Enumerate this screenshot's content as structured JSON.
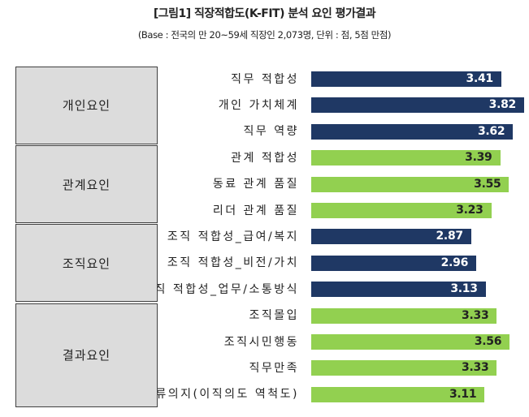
{
  "chart_data": {
    "type": "bar",
    "orientation": "horizontal",
    "title": "[그림1] 직장적합도(K-FIT) 분석 요인 평가결과",
    "subtitle": "(Base : 전국의 만 20~59세 직장인 2,073명, 단위 :  점, 5점 만점)",
    "xlim": [
      0,
      5
    ],
    "grid": false,
    "colors": {
      "dark": "#1f3864",
      "light": "#92d050"
    },
    "groups": [
      {
        "name": "개인요인",
        "color": "dark",
        "items": [
          {
            "label": "직무 적합성",
            "value": 3.41
          },
          {
            "label": "개인 가치체계",
            "value": 3.82
          },
          {
            "label": "직무 역량",
            "value": 3.62
          }
        ]
      },
      {
        "name": "관계요인",
        "color": "light",
        "items": [
          {
            "label": "관계 적합성",
            "value": 3.39
          },
          {
            "label": "동료 관계 품질",
            "value": 3.55
          },
          {
            "label": "리더 관계 품질",
            "value": 3.23
          }
        ]
      },
      {
        "name": "조직요인",
        "color": "dark",
        "items": [
          {
            "label": "조직 적합성_급여/복지",
            "value": 2.87
          },
          {
            "label": "조직 적합성_비전/가치",
            "value": 2.96
          },
          {
            "label": "조직 적합성_업무/소통방식",
            "value": 3.13
          }
        ]
      },
      {
        "name": "결과요인",
        "color": "light",
        "items": [
          {
            "label": "조직몰입",
            "value": 3.33
          },
          {
            "label": "조직시민행동",
            "value": 3.56
          },
          {
            "label": "직무만족",
            "value": 3.33
          },
          {
            "label": "잔류의지(이직의도 역척도)",
            "value": 3.11
          }
        ]
      }
    ]
  }
}
